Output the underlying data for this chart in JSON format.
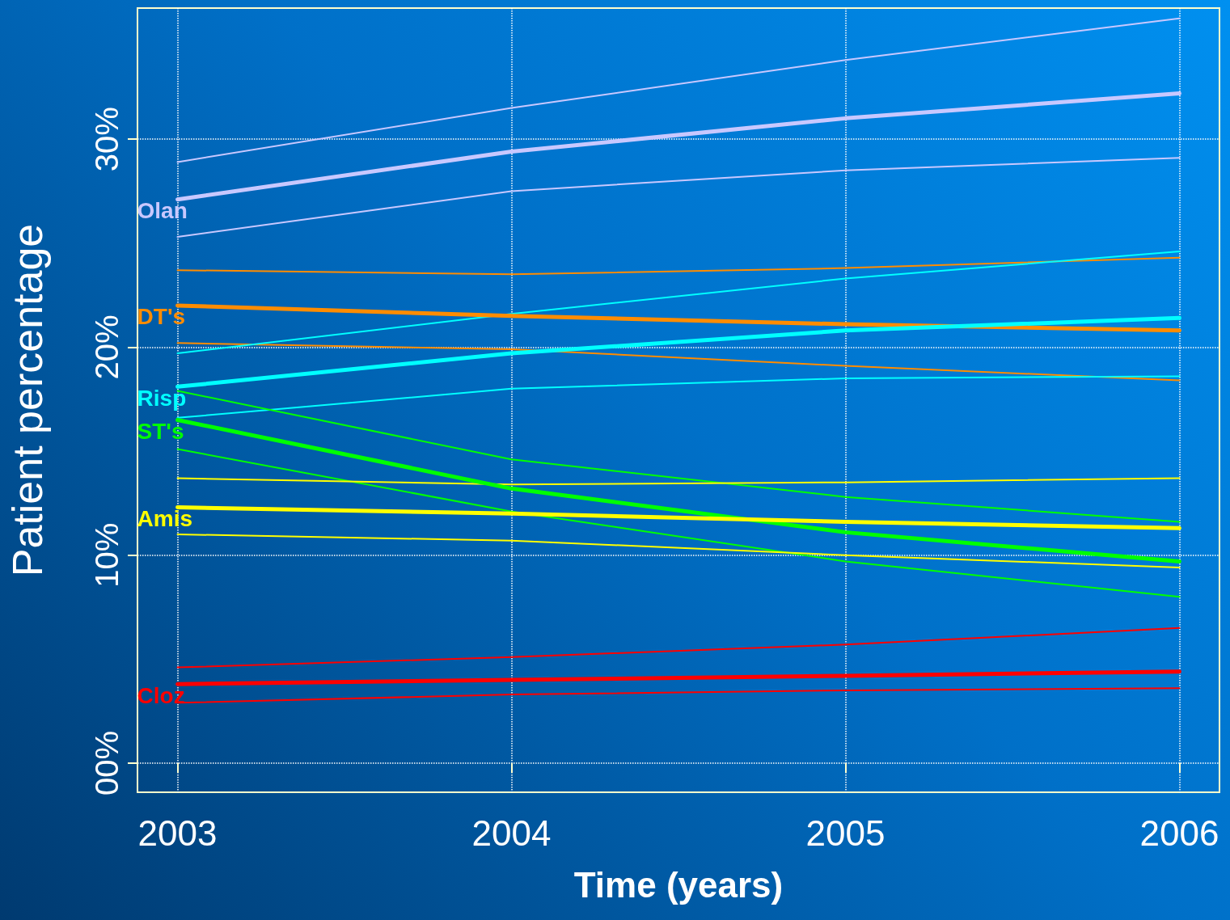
{
  "chart_data": {
    "type": "line",
    "xlabel": "Time (years)",
    "ylabel": "Patient percentage",
    "x": [
      2003,
      2004,
      2005,
      2006
    ],
    "xlim": [
      2002.88,
      2006.12
    ],
    "xticks": [
      2003,
      2004,
      2005,
      2006
    ],
    "ylim": [
      -1.4,
      36.3
    ],
    "yticks": [
      {
        "value": 0,
        "label": "00%"
      },
      {
        "value": 10,
        "label": "10%"
      },
      {
        "value": 20,
        "label": "20%"
      },
      {
        "value": 30,
        "label": "30%"
      }
    ],
    "grid": true,
    "legend": false,
    "marker": "none",
    "line_style": "solid",
    "series": [
      {
        "color": "#c8c8ff",
        "values": [
          28.9,
          31.5,
          33.8,
          35.8
        ]
      },
      {
        "name": "Olan",
        "color": "#c8c8ff",
        "values": [
          27.1,
          29.4,
          31.0,
          32.2
        ]
      },
      {
        "color": "#c8c8ff",
        "values": [
          25.3,
          27.5,
          28.5,
          29.1
        ]
      },
      {
        "color": "#ff8c00",
        "values": [
          23.7,
          23.5,
          23.8,
          24.3
        ]
      },
      {
        "name": "DT's",
        "color": "#ff8c00",
        "values": [
          22.0,
          21.5,
          21.1,
          20.8
        ]
      },
      {
        "color": "#ff8c00",
        "values": [
          20.2,
          19.9,
          19.1,
          18.4
        ]
      },
      {
        "color": "#00ffff",
        "values": [
          19.7,
          21.6,
          23.3,
          24.6
        ]
      },
      {
        "name": "Risp",
        "color": "#00ffff",
        "values": [
          18.1,
          19.7,
          20.8,
          21.4
        ]
      },
      {
        "color": "#00ffff",
        "values": [
          16.6,
          18.0,
          18.5,
          18.6
        ]
      },
      {
        "color": "#00ff00",
        "values": [
          17.9,
          14.6,
          12.8,
          11.6
        ]
      },
      {
        "name": "ST's",
        "color": "#00ff00",
        "values": [
          16.5,
          13.2,
          11.1,
          9.7
        ]
      },
      {
        "color": "#00ff00",
        "values": [
          15.1,
          12.1,
          9.7,
          8.0
        ]
      },
      {
        "color": "#ffff00",
        "values": [
          13.7,
          13.4,
          13.5,
          13.7
        ]
      },
      {
        "name": "Amis",
        "color": "#ffff00",
        "values": [
          12.3,
          12.0,
          11.6,
          11.3
        ]
      },
      {
        "color": "#ffff00",
        "values": [
          11.0,
          10.7,
          10.0,
          9.4
        ]
      },
      {
        "color": "#ff0000",
        "values": [
          4.6,
          5.1,
          5.7,
          6.5
        ]
      },
      {
        "name": "Cloz",
        "color": "#ff0000",
        "values": [
          3.8,
          4.0,
          4.2,
          4.4
        ]
      },
      {
        "color": "#ff0000",
        "values": [
          2.9,
          3.3,
          3.5,
          3.6
        ]
      }
    ]
  }
}
